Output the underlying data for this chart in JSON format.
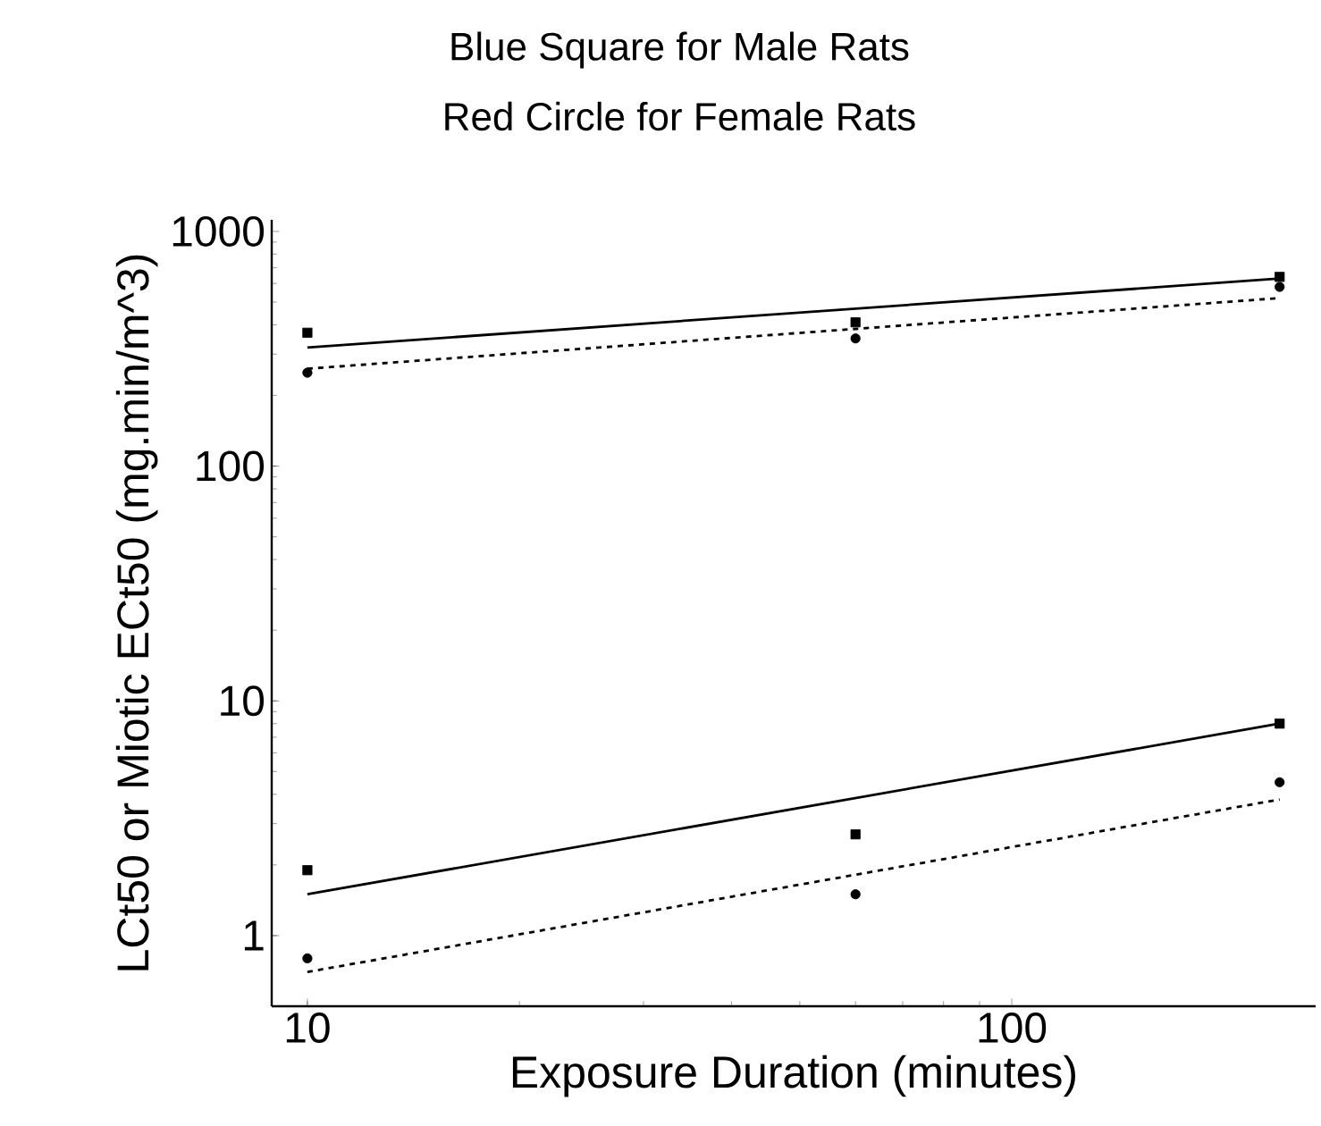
{
  "chart_data": {
    "type": "scatter",
    "title": "Blue Square for Male Rats",
    "subtitle": "Red Circle for Female Rats",
    "xlabel": "Exposure Duration (minutes)",
    "ylabel": "LCt50 or Miotic ECt50 (mg.min/m^3)",
    "log": "xy",
    "xlim": [
      8.9,
      270
    ],
    "ylim": [
      0.5,
      1120
    ],
    "xticks": [
      10,
      100
    ],
    "yticks": [
      1,
      10,
      100,
      1000
    ],
    "grid": false,
    "series": [
      {
        "marker": "square",
        "color": "#000000",
        "x": [
          10,
          60,
          240
        ],
        "values": [
          370,
          410,
          640
        ]
      },
      {
        "marker": "circle",
        "color": "#000000",
        "x": [
          10,
          60,
          240
        ],
        "values": [
          250,
          350,
          580
        ]
      },
      {
        "type": "line",
        "line_style": "solid",
        "marker": "none",
        "color": "#000000",
        "x": [
          10,
          240
        ],
        "values": [
          320,
          630
        ]
      },
      {
        "type": "line",
        "line_style": "dashed",
        "marker": "none",
        "color": "#000000",
        "x": [
          10,
          240
        ],
        "values": [
          260,
          520
        ]
      },
      {
        "marker": "square",
        "color": "#000000",
        "x": [
          10,
          60,
          240
        ],
        "values": [
          1.9,
          2.7,
          8
        ]
      },
      {
        "marker": "circle",
        "color": "#000000",
        "x": [
          10,
          60,
          240
        ],
        "values": [
          0.8,
          1.5,
          4.5
        ]
      },
      {
        "type": "line",
        "line_style": "solid",
        "marker": "none",
        "color": "#000000",
        "x": [
          10,
          240
        ],
        "values": [
          1.5,
          8
        ]
      },
      {
        "type": "line",
        "line_style": "dashed",
        "marker": "none",
        "color": "#000000",
        "x": [
          10,
          240
        ],
        "values": [
          0.7,
          3.8
        ]
      }
    ]
  }
}
